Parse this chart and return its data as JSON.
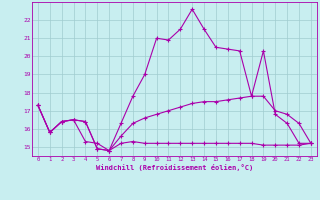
{
  "xlabel": "Windchill (Refroidissement éolien,°C)",
  "background_color": "#c8eef0",
  "grid_color": "#a0ccd0",
  "line_color": "#aa00aa",
  "x": [
    0,
    1,
    2,
    3,
    4,
    5,
    6,
    7,
    8,
    9,
    10,
    11,
    12,
    13,
    14,
    15,
    16,
    17,
    18,
    19,
    20,
    21,
    22,
    23
  ],
  "line1": [
    17.3,
    15.8,
    16.4,
    16.5,
    16.4,
    14.9,
    14.8,
    16.3,
    17.8,
    19.0,
    21.0,
    20.9,
    21.5,
    22.6,
    21.5,
    20.5,
    20.4,
    20.3,
    17.8,
    20.3,
    16.8,
    16.3,
    15.2,
    15.2
  ],
  "line2": [
    17.3,
    15.8,
    16.4,
    16.5,
    16.4,
    14.9,
    14.8,
    15.6,
    16.3,
    16.6,
    16.8,
    17.0,
    17.2,
    17.4,
    17.5,
    17.5,
    17.6,
    17.7,
    17.8,
    17.8,
    17.0,
    16.8,
    16.3,
    15.2
  ],
  "line3": [
    17.3,
    15.8,
    16.4,
    16.5,
    15.3,
    15.2,
    14.8,
    15.2,
    15.3,
    15.2,
    15.2,
    15.2,
    15.2,
    15.2,
    15.2,
    15.2,
    15.2,
    15.2,
    15.2,
    15.1,
    15.1,
    15.1,
    15.1,
    15.2
  ],
  "ylim": [
    14.5,
    23.0
  ],
  "yticks": [
    15,
    16,
    17,
    18,
    19,
    20,
    21,
    22
  ],
  "xlim": [
    -0.5,
    23.5
  ],
  "xticks": [
    0,
    1,
    2,
    3,
    4,
    5,
    6,
    7,
    8,
    9,
    10,
    11,
    12,
    13,
    14,
    15,
    16,
    17,
    18,
    19,
    20,
    21,
    22,
    23
  ]
}
